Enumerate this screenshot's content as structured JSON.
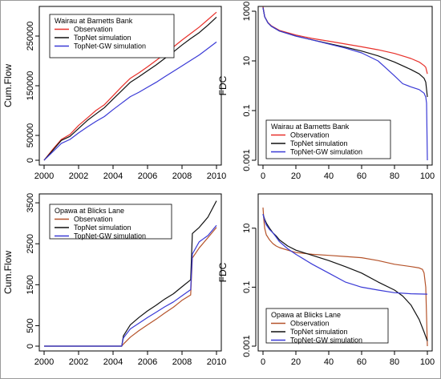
{
  "chart_data": [
    {
      "type": "line",
      "ylabel": "Cum.Flow",
      "xlim": [
        2000,
        2010
      ],
      "ylim": [
        0,
        300000
      ],
      "xticks": [
        2000,
        2002,
        2004,
        2006,
        2008,
        2010
      ],
      "xtick_labels": [
        "2000",
        "2002",
        "2004",
        "2006",
        "2008",
        "2010"
      ],
      "yticks": [
        0,
        50000,
        150000,
        250000
      ],
      "ytick_labels": [
        "0",
        "50000",
        "150000",
        "250000"
      ],
      "log_y": false,
      "legend_title": "Wairau at Barnetts Bank",
      "legend_position": "top-left",
      "series": [
        {
          "name": "Observation",
          "color": "#e8302a",
          "x": [
            2000.0,
            2000.5,
            2001.0,
            2001.5,
            2002.0,
            2002.5,
            2003.0,
            2003.5,
            2004.0,
            2004.5,
            2005.0,
            2005.5,
            2006.0,
            2006.5,
            2007.0,
            2007.5,
            2008.0,
            2008.5,
            2009.0,
            2009.5,
            2010.0
          ],
          "y": [
            0,
            22000,
            42000,
            52000,
            70000,
            85000,
            100000,
            112000,
            130000,
            148000,
            165000,
            176000,
            188000,
            201000,
            214000,
            228000,
            242000,
            255000,
            268000,
            283000,
            298000
          ]
        },
        {
          "name": "TopNet simulation",
          "color": "#111111",
          "x": [
            2000.0,
            2000.5,
            2001.0,
            2001.5,
            2002.0,
            2002.5,
            2003.0,
            2003.5,
            2004.0,
            2004.5,
            2005.0,
            2005.5,
            2006.0,
            2006.5,
            2007.0,
            2007.5,
            2008.0,
            2008.5,
            2009.0,
            2009.5,
            2010.0
          ],
          "y": [
            0,
            20000,
            40000,
            48000,
            64000,
            80000,
            93000,
            106000,
            123000,
            140000,
            157000,
            168000,
            180000,
            192000,
            205000,
            218000,
            232000,
            245000,
            257000,
            272000,
            288000
          ]
        },
        {
          "name": "TopNet-GW simulation",
          "color": "#3a3ad6",
          "x": [
            2000.0,
            2000.5,
            2001.0,
            2001.5,
            2002.0,
            2002.5,
            2003.0,
            2003.5,
            2004.0,
            2004.5,
            2005.0,
            2005.5,
            2006.0,
            2006.5,
            2007.0,
            2007.5,
            2008.0,
            2008.5,
            2009.0,
            2009.5,
            2010.0
          ],
          "y": [
            0,
            17000,
            34000,
            42000,
            55000,
            67000,
            78000,
            88000,
            102000,
            115000,
            128000,
            137000,
            147000,
            157000,
            168000,
            179000,
            190000,
            201000,
            212000,
            225000,
            238000
          ]
        }
      ]
    },
    {
      "type": "line",
      "ylabel": "FDC",
      "xlim": [
        0,
        100
      ],
      "ylim": [
        0.001,
        1000
      ],
      "xticks": [
        0,
        20,
        40,
        60,
        80,
        100
      ],
      "xtick_labels": [
        "0",
        "20",
        "40",
        "60",
        "80",
        "100"
      ],
      "yticks": [
        0.001,
        0.1,
        10,
        1000
      ],
      "ytick_labels": [
        "0.001",
        "0.1",
        "10",
        "1000"
      ],
      "log_y": true,
      "legend_title": "Wairau at Barnetts Bank",
      "legend_position": "bottom-left",
      "series": [
        {
          "name": "Observation",
          "color": "#e8302a",
          "x": [
            0,
            1,
            3,
            5,
            10,
            20,
            30,
            40,
            50,
            60,
            70,
            80,
            90,
            95,
            98,
            99,
            100
          ],
          "y": [
            1500,
            600,
            350,
            260,
            170,
            110,
            80,
            62,
            48,
            37,
            28,
            20,
            12.5,
            9,
            6.5,
            5.5,
            3
          ]
        },
        {
          "name": "TopNet simulation",
          "color": "#111111",
          "x": [
            0,
            1,
            3,
            5,
            10,
            20,
            30,
            40,
            50,
            60,
            70,
            80,
            90,
            95,
            98,
            99,
            100
          ],
          "y": [
            1400,
            600,
            340,
            250,
            160,
            100,
            70,
            50,
            36,
            25,
            16,
            9,
            4.5,
            3,
            2,
            1.4,
            0.35
          ]
        },
        {
          "name": "TopNet-GW simulation",
          "color": "#3a3ad6",
          "x": [
            0,
            1,
            3,
            5,
            10,
            20,
            30,
            40,
            50,
            60,
            70,
            75,
            80,
            85,
            90,
            95,
            98,
            99,
            99.5,
            100
          ],
          "y": [
            1400,
            600,
            340,
            250,
            160,
            100,
            70,
            48,
            33,
            21,
            10,
            5,
            2.5,
            1.2,
            0.9,
            0.7,
            0.5,
            0.35,
            0.2,
            0.001
          ]
        }
      ]
    },
    {
      "type": "line",
      "ylabel": "Cum.Flow",
      "xlim": [
        2000,
        2010
      ],
      "ylim": [
        0,
        3600
      ],
      "xticks": [
        2000,
        2002,
        2004,
        2006,
        2008,
        2010
      ],
      "xtick_labels": [
        "2000",
        "2002",
        "2004",
        "2006",
        "2008",
        "2010"
      ],
      "yticks": [
        0,
        500,
        1500,
        2500,
        3500
      ],
      "ytick_labels": [
        "0",
        "500",
        "1500",
        "2500",
        "3500"
      ],
      "log_y": false,
      "legend_title": "Opawa at Blicks Lane",
      "legend_position": "top-left",
      "series": [
        {
          "name": "Observation",
          "color": "#b5532a",
          "x": [
            2000.0,
            2004.5,
            2004.6,
            2005.0,
            2005.5,
            2006.0,
            2006.5,
            2007.0,
            2007.5,
            2008.0,
            2008.5,
            2008.6,
            2009.0,
            2009.5,
            2010.0
          ],
          "y": [
            0,
            0,
            50,
            220,
            380,
            520,
            660,
            810,
            950,
            1120,
            1250,
            2150,
            2400,
            2650,
            2900
          ]
        },
        {
          "name": "TopNet simulation",
          "color": "#111111",
          "x": [
            2000.0,
            2004.5,
            2004.6,
            2005.0,
            2005.5,
            2006.0,
            2006.5,
            2007.0,
            2007.5,
            2008.0,
            2008.5,
            2008.6,
            2009.0,
            2009.5,
            2010.0
          ],
          "y": [
            0,
            0,
            250,
            520,
            700,
            860,
            1000,
            1150,
            1280,
            1450,
            1620,
            2750,
            2900,
            3150,
            3550
          ]
        },
        {
          "name": "TopNet-GW simulation",
          "color": "#3a3ad6",
          "x": [
            2000.0,
            2004.5,
            2004.6,
            2005.0,
            2005.5,
            2006.0,
            2006.5,
            2007.0,
            2007.5,
            2008.0,
            2008.5,
            2008.6,
            2009.0,
            2009.5,
            2010.0
          ],
          "y": [
            0,
            0,
            200,
            420,
            560,
            700,
            830,
            960,
            1080,
            1230,
            1380,
            2250,
            2550,
            2700,
            2950
          ]
        }
      ]
    },
    {
      "type": "line",
      "ylabel": "FDC",
      "xlim": [
        0,
        100
      ],
      "ylim": [
        0.001,
        100
      ],
      "xticks": [
        0,
        20,
        40,
        60,
        80,
        100
      ],
      "xtick_labels": [
        "0",
        "20",
        "40",
        "60",
        "80",
        "100"
      ],
      "yticks": [
        0.001,
        0.1,
        10
      ],
      "ytick_labels": [
        "0.001",
        "0.1",
        "10"
      ],
      "log_y": true,
      "legend_title": "Opawa at Blicks Lane",
      "legend_position": "bottom-left",
      "series": [
        {
          "name": "Observation",
          "color": "#b5532a",
          "x": [
            0,
            0.5,
            1,
            2,
            4,
            6,
            8,
            10,
            15,
            20,
            30,
            40,
            50,
            60,
            70,
            80,
            90,
            95,
            97,
            98,
            99,
            100
          ],
          "y": [
            50,
            20,
            10,
            6,
            4,
            3,
            2.5,
            2.2,
            1.8,
            1.5,
            1.3,
            1.2,
            1.1,
            1.0,
            0.8,
            0.6,
            0.5,
            0.45,
            0.4,
            0.3,
            0.1,
            0.001
          ]
        },
        {
          "name": "TopNet simulation",
          "color": "#111111",
          "x": [
            0,
            1,
            2,
            4,
            6,
            8,
            10,
            15,
            20,
            30,
            40,
            50,
            60,
            70,
            80,
            85,
            90,
            95,
            98,
            100
          ],
          "y": [
            30,
            20,
            15,
            10,
            7,
            5.5,
            4,
            2.5,
            1.8,
            1.2,
            0.8,
            0.5,
            0.3,
            0.15,
            0.08,
            0.05,
            0.025,
            0.008,
            0.003,
            0.0015
          ]
        },
        {
          "name": "TopNet-GW simulation",
          "color": "#3a3ad6",
          "x": [
            0,
            1,
            2,
            4,
            6,
            8,
            10,
            15,
            20,
            30,
            40,
            50,
            60,
            70,
            80,
            90,
            100
          ],
          "y": [
            30,
            18,
            13,
            9,
            7,
            5,
            3.5,
            2,
            1.3,
            0.6,
            0.3,
            0.15,
            0.1,
            0.08,
            0.065,
            0.06,
            0.058
          ]
        }
      ]
    }
  ]
}
